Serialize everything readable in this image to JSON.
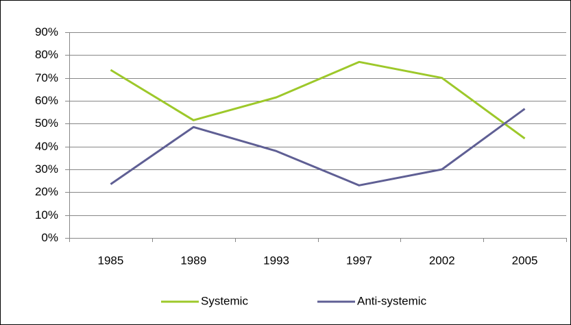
{
  "chart_data": {
    "type": "line",
    "categories": [
      "1985",
      "1989",
      "1993",
      "1997",
      "2002",
      "2005"
    ],
    "series": [
      {
        "name": "Systemic",
        "color": "#9dc82a",
        "values": [
          73.5,
          51.5,
          61.5,
          77,
          70,
          43.5
        ]
      },
      {
        "name": "Anti-systemic",
        "color": "#5f5f94",
        "values": [
          23.5,
          48.5,
          38,
          23,
          30,
          56.5
        ]
      }
    ],
    "ylim": [
      0,
      90
    ],
    "yticks": [
      {
        "value": 0,
        "label": "0%"
      },
      {
        "value": 10,
        "label": "10%"
      },
      {
        "value": 20,
        "label": "20%"
      },
      {
        "value": 30,
        "label": "30%"
      },
      {
        "value": 40,
        "label": "40%"
      },
      {
        "value": 50,
        "label": "50%"
      },
      {
        "value": 60,
        "label": "60%"
      },
      {
        "value": 70,
        "label": "70%"
      },
      {
        "value": 80,
        "label": "80%"
      },
      {
        "value": 90,
        "label": "90%"
      }
    ],
    "grid": true,
    "legend": "bottom"
  }
}
